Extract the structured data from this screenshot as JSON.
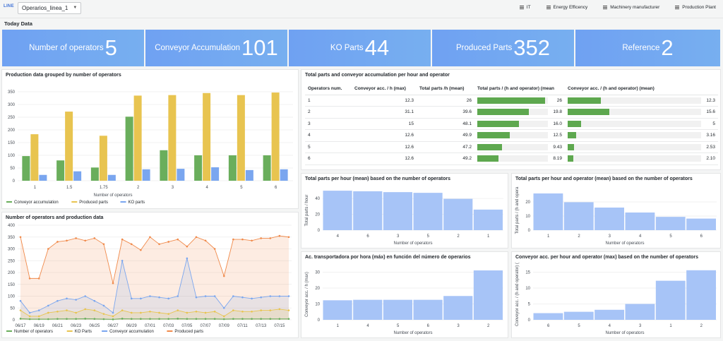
{
  "topbar": {
    "tag": "LINE",
    "variable_value": "Operarios_linea_1",
    "links": [
      "IT",
      "Energy Efficency",
      "Machinery manufacturer",
      "Production Plant"
    ]
  },
  "row_title": "Today Data",
  "stats": [
    {
      "label": "Number of operators",
      "value": "5"
    },
    {
      "label": "Conveyor Accumulation",
      "value": "101"
    },
    {
      "label": "KO Parts",
      "value": "44"
    },
    {
      "label": "Produced Parts",
      "value": "352"
    },
    {
      "label": "Reference",
      "value": "2"
    }
  ],
  "colors": {
    "green": "#6aae5c",
    "yellow": "#e8c450",
    "blue": "#7aa6ef",
    "orange": "#f08a4b",
    "panel_bar": "#a7c4f7"
  },
  "panels": {
    "grouped": "Production data grouped by number of operators",
    "table": "Total parts and conveyor accumulation per hour and operator",
    "timeseries": "Number of operators and production data",
    "hist1": "Total parts per hour (mean) based on the number of operators",
    "hist2": "Total parts per hour and operator (mean) based on the number of operators",
    "hist3": "Ac. transportadora por hora (máx) en función del número de operarios",
    "hist4": "Conveyor acc. per hour and operator (max) based on the number of operators"
  },
  "table": {
    "headers": [
      "Operators num.",
      "Conveyor acc. / h (max)",
      "Total parts /h (mean)",
      "Total parts / (h and operator) (mean",
      "Conveyor acc. / (h and operator) (mean)"
    ],
    "rows": [
      {
        "ops": "1",
        "conv": "12.3",
        "total": "26",
        "tpo": "26",
        "tpo_f": 0.96,
        "cao": "12.3",
        "cao_f": 0.25
      },
      {
        "ops": "2",
        "conv": "31.1",
        "total": "39.6",
        "tpo": "19.8",
        "tpo_f": 0.73,
        "cao": "15.6",
        "cao_f": 0.31
      },
      {
        "ops": "3",
        "conv": "15",
        "total": "48.1",
        "tpo": "16.0",
        "tpo_f": 0.59,
        "cao": "5",
        "cao_f": 0.1
      },
      {
        "ops": "4",
        "conv": "12.6",
        "total": "49.9",
        "tpo": "12.5",
        "tpo_f": 0.46,
        "cao": "3.16",
        "cao_f": 0.063
      },
      {
        "ops": "5",
        "conv": "12.6",
        "total": "47.2",
        "tpo": "9.43",
        "tpo_f": 0.35,
        "cao": "2.53",
        "cao_f": 0.05
      },
      {
        "ops": "6",
        "conv": "12.6",
        "total": "49.2",
        "tpo": "8.19",
        "tpo_f": 0.3,
        "cao": "2.10",
        "cao_f": 0.042
      }
    ]
  },
  "chart_data": [
    {
      "id": "grouped",
      "type": "bar",
      "categories": [
        "1",
        "1.5",
        "1.75",
        "2",
        "3",
        "4",
        "5",
        "6"
      ],
      "series": [
        {
          "name": "Conveyor accumulation",
          "values": [
            97,
            80,
            52,
            252,
            120,
            100,
            100,
            100
          ]
        },
        {
          "name": "Produced parts",
          "values": [
            183,
            272,
            177,
            335,
            337,
            345,
            337,
            347
          ]
        },
        {
          "name": "KO parts",
          "values": [
            23,
            37,
            23,
            45,
            47,
            53,
            42,
            45
          ]
        }
      ],
      "xlabel": "Number of operators",
      "ylim": [
        0,
        350
      ],
      "yticks": [
        "0",
        "50",
        "100",
        "150",
        "200",
        "250",
        "300",
        "350"
      ]
    },
    {
      "id": "timeseries",
      "type": "area",
      "x": [
        "06/17",
        "06/18",
        "06/19",
        "06/20",
        "06/21",
        "06/22",
        "06/23",
        "06/24",
        "06/25",
        "06/26",
        "06/27",
        "06/28",
        "06/29",
        "06/30",
        "07/01",
        "07/02",
        "07/03",
        "07/04",
        "07/05",
        "07/06",
        "07/07",
        "07/08",
        "07/09",
        "07/10",
        "07/11",
        "07/12",
        "07/13",
        "07/14",
        "07/15",
        "07/16"
      ],
      "xticks": [
        "06/17",
        "06/19",
        "06/21",
        "06/23",
        "06/25",
        "06/27",
        "06/29",
        "07/01",
        "07/03",
        "07/05",
        "07/07",
        "07/09",
        "07/11",
        "07/13",
        "07/15"
      ],
      "series": [
        {
          "name": "Number of operators",
          "values": [
            5,
            3,
            3,
            3,
            4,
            4,
            4,
            5,
            4,
            3,
            2,
            5,
            4,
            4,
            4,
            4,
            4,
            5,
            4,
            4,
            4,
            4,
            3,
            4,
            4,
            4,
            4,
            4,
            4,
            4
          ]
        },
        {
          "name": "KO Parts",
          "values": [
            40,
            15,
            15,
            30,
            35,
            40,
            30,
            45,
            40,
            25,
            15,
            40,
            30,
            30,
            35,
            30,
            25,
            40,
            30,
            35,
            30,
            35,
            15,
            40,
            35,
            35,
            40,
            40,
            45,
            40
          ]
        },
        {
          "name": "Conveyor accumulation",
          "values": [
            80,
            30,
            40,
            60,
            80,
            90,
            85,
            100,
            80,
            60,
            30,
            250,
            90,
            90,
            100,
            95,
            90,
            100,
            260,
            95,
            100,
            100,
            50,
            100,
            95,
            90,
            95,
            100,
            100,
            100
          ]
        },
        {
          "name": "Produced parts",
          "values": [
            350,
            175,
            175,
            300,
            330,
            335,
            345,
            335,
            345,
            320,
            155,
            340,
            320,
            295,
            350,
            320,
            330,
            340,
            310,
            350,
            335,
            300,
            185,
            340,
            340,
            335,
            345,
            345,
            355,
            350
          ]
        }
      ],
      "ylim": [
        0,
        400
      ],
      "yticks": [
        "0",
        "50",
        "100",
        "150",
        "200",
        "250",
        "300",
        "350",
        "400"
      ]
    },
    {
      "id": "hist1",
      "type": "bar",
      "categories": [
        "4",
        "6",
        "3",
        "5",
        "2",
        "1"
      ],
      "values": [
        49.9,
        49.2,
        48.1,
        47.2,
        39.6,
        26
      ],
      "xlabel": "Number of operators",
      "ylabel": "Total parts / hour",
      "ylim": [
        0,
        50
      ],
      "yticks": [
        "0",
        "20",
        "40"
      ]
    },
    {
      "id": "hist2",
      "type": "bar",
      "categories": [
        "1",
        "2",
        "3",
        "4",
        "5",
        "6"
      ],
      "values": [
        26,
        19.8,
        16.0,
        12.5,
        9.43,
        8.19
      ],
      "xlabel": "Number of operators",
      "ylabel": "Total parts / (h and opera",
      "ylim": [
        0,
        28
      ],
      "yticks": [
        "0",
        "10",
        "20"
      ]
    },
    {
      "id": "hist3",
      "type": "bar",
      "categories": [
        "1",
        "4",
        "5",
        "6",
        "3",
        "2"
      ],
      "values": [
        12.3,
        12.6,
        12.6,
        12.6,
        15,
        31.1
      ],
      "xlabel": "Number of operators",
      "ylabel": "Conveyor acc. / h (max)",
      "ylim": [
        0,
        32
      ],
      "yticks": [
        "0",
        "10",
        "20",
        "30"
      ]
    },
    {
      "id": "hist4",
      "type": "bar",
      "categories": [
        "6",
        "5",
        "4",
        "3",
        "1",
        "2"
      ],
      "values": [
        2.1,
        2.53,
        3.16,
        5,
        12.3,
        15.6
      ],
      "xlabel": "Number of operators",
      "ylabel": "Conveyor acc. / (h and operator) (",
      "ylim": [
        0,
        16
      ],
      "yticks": [
        "0",
        "5",
        "10",
        "15"
      ]
    }
  ]
}
